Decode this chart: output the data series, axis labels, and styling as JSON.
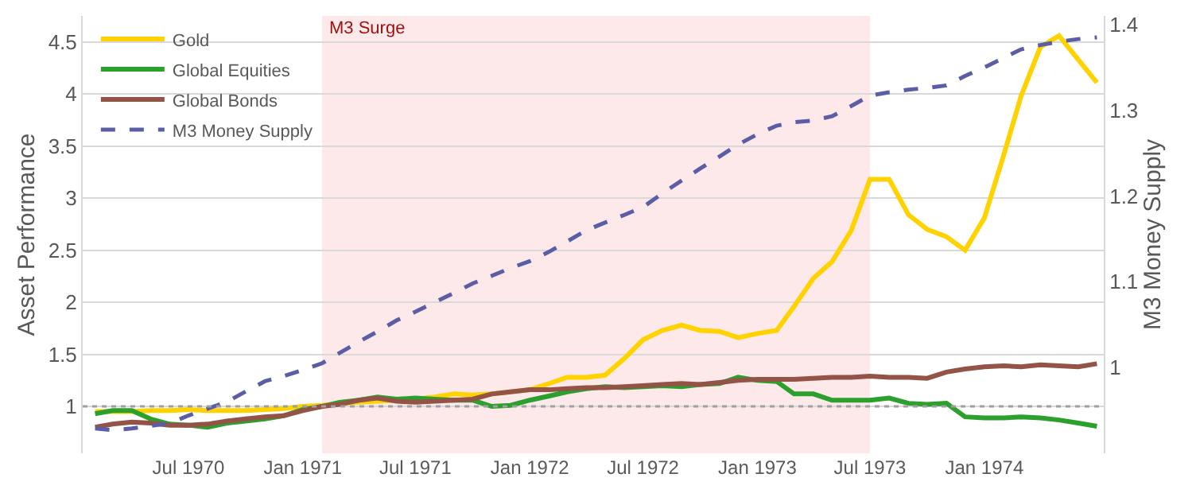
{
  "chart_data": {
    "type": "line",
    "ylabel": "Asset Performance",
    "y2label": "M3 Money Supply",
    "x": [
      "1970-02",
      "1970-03",
      "1970-04",
      "1970-05",
      "1970-06",
      "1970-07",
      "1970-08",
      "1970-09",
      "1970-10",
      "1970-11",
      "1970-12",
      "1971-01",
      "1971-02",
      "1971-03",
      "1971-04",
      "1971-05",
      "1971-06",
      "1971-07",
      "1971-08",
      "1971-09",
      "1971-10",
      "1971-11",
      "1971-12",
      "1972-01",
      "1972-02",
      "1972-03",
      "1972-04",
      "1972-05",
      "1972-06",
      "1972-07",
      "1972-08",
      "1972-09",
      "1972-10",
      "1972-11",
      "1972-12",
      "1973-01",
      "1973-02",
      "1973-03",
      "1973-04",
      "1973-05",
      "1973-06",
      "1973-07",
      "1973-08",
      "1973-09",
      "1973-10",
      "1973-11",
      "1973-12",
      "1974-01",
      "1974-02",
      "1974-03",
      "1974-04",
      "1974-05",
      "1974-06",
      "1974-07"
    ],
    "series": [
      {
        "name": "Gold",
        "color": "#ffd200",
        "values": [
          0.95,
          0.95,
          0.95,
          0.96,
          0.96,
          0.97,
          0.96,
          0.96,
          0.96,
          0.97,
          0.98,
          1.0,
          1.01,
          1.03,
          1.04,
          1.05,
          1.06,
          1.07,
          1.09,
          1.12,
          1.11,
          1.12,
          1.14,
          1.16,
          1.22,
          1.28,
          1.28,
          1.3,
          1.46,
          1.64,
          1.73,
          1.78,
          1.73,
          1.72,
          1.66,
          1.7,
          1.73,
          1.96,
          2.23,
          2.39,
          2.69,
          3.18,
          3.18,
          2.84,
          2.7,
          2.63,
          2.5,
          2.81,
          3.41,
          3.98,
          4.45,
          4.56,
          4.33,
          4.11
        ]
      },
      {
        "name": "Global Equities",
        "color": "#2ca02c",
        "values": [
          0.93,
          0.96,
          0.96,
          0.88,
          0.83,
          0.82,
          0.8,
          0.84,
          0.86,
          0.88,
          0.91,
          0.97,
          1.0,
          1.04,
          1.06,
          1.09,
          1.07,
          1.08,
          1.07,
          1.06,
          1.06,
          1.0,
          1.01,
          1.06,
          1.1,
          1.14,
          1.17,
          1.19,
          1.18,
          1.19,
          1.2,
          1.19,
          1.21,
          1.22,
          1.28,
          1.25,
          1.24,
          1.12,
          1.12,
          1.06,
          1.06,
          1.06,
          1.08,
          1.03,
          1.02,
          1.03,
          0.9,
          0.89,
          0.89,
          0.9,
          0.89,
          0.87,
          0.84,
          0.81
        ]
      },
      {
        "name": "Global Bonds",
        "color": "#935347",
        "values": [
          0.8,
          0.83,
          0.85,
          0.84,
          0.82,
          0.82,
          0.83,
          0.86,
          0.88,
          0.9,
          0.91,
          0.96,
          1.0,
          1.02,
          1.06,
          1.08,
          1.05,
          1.04,
          1.05,
          1.06,
          1.07,
          1.12,
          1.14,
          1.16,
          1.16,
          1.17,
          1.18,
          1.18,
          1.19,
          1.2,
          1.21,
          1.22,
          1.21,
          1.23,
          1.25,
          1.26,
          1.26,
          1.26,
          1.27,
          1.28,
          1.28,
          1.29,
          1.28,
          1.28,
          1.27,
          1.33,
          1.36,
          1.38,
          1.39,
          1.38,
          1.4,
          1.39,
          1.38,
          1.41
        ]
      },
      {
        "name": "M3 Money Supply",
        "color": "#5b5ea6",
        "axis": "y2",
        "line_style": "dashed",
        "values": [
          0.929,
          0.927,
          0.929,
          0.932,
          0.935,
          0.944,
          0.952,
          0.96,
          0.972,
          0.984,
          0.99,
          0.997,
          1.005,
          1.017,
          1.03,
          1.042,
          1.055,
          1.065,
          1.076,
          1.087,
          1.098,
          1.107,
          1.116,
          1.124,
          1.135,
          1.147,
          1.16,
          1.169,
          1.178,
          1.187,
          1.203,
          1.218,
          1.232,
          1.246,
          1.26,
          1.272,
          1.282,
          1.286,
          1.288,
          1.293,
          1.305,
          1.317,
          1.321,
          1.324,
          1.326,
          1.329,
          1.34,
          1.35,
          1.361,
          1.371,
          1.376,
          1.38,
          1.383,
          1.385
        ]
      }
    ],
    "xlim": [
      "1970-01-12",
      "1974-07-12"
    ],
    "xticks": [
      {
        "value": "1970-07",
        "label": "Jul 1970"
      },
      {
        "value": "1971-01",
        "label": "Jan 1971"
      },
      {
        "value": "1971-07",
        "label": "Jul 1971"
      },
      {
        "value": "1972-01",
        "label": "Jan 1972"
      },
      {
        "value": "1972-07",
        "label": "Jul 1972"
      },
      {
        "value": "1973-01",
        "label": "Jan 1973"
      },
      {
        "value": "1973-07",
        "label": "Jul 1973"
      },
      {
        "value": "1974-01",
        "label": "Jan 1974"
      }
    ],
    "ylim": [
      0.55,
      4.75
    ],
    "yticks": [
      1,
      1.5,
      2,
      2.5,
      3,
      3.5,
      4,
      4.5
    ],
    "y2lim": [
      0.9,
      1.41
    ],
    "y2ticks": [
      1,
      1.1,
      1.2,
      1.3,
      1.4
    ],
    "bands": [
      {
        "axis": "x",
        "from": "1971-02",
        "to": "1973-07",
        "label": "M3 Surge",
        "color": "#fde9ea"
      }
    ],
    "ref_lines": [
      {
        "axis": "y",
        "value": 1,
        "color": "#a0a0a0",
        "line_style": "dotted"
      }
    ],
    "grid": "y",
    "legend": "top left",
    "line_style": "solid",
    "marker": "none"
  }
}
